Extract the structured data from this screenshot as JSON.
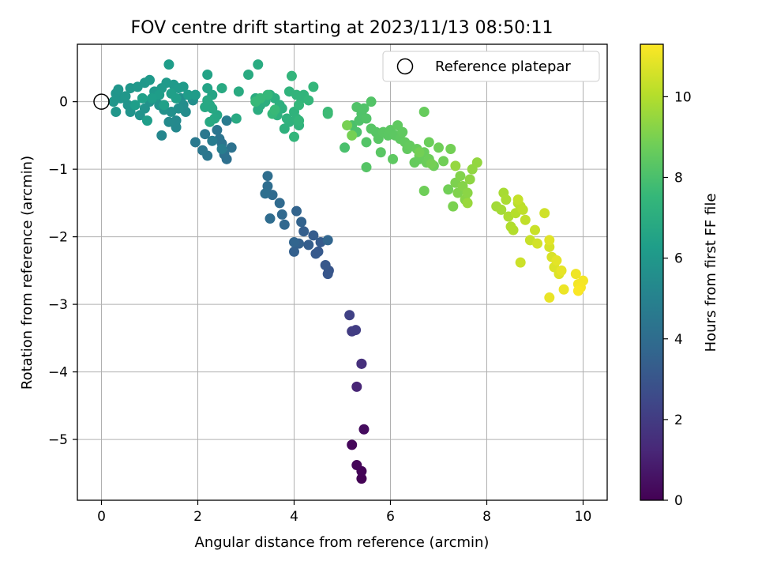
{
  "chart_data": {
    "type": "scatter",
    "title": "FOV centre drift starting at 2023/11/13 08:50:11",
    "xlabel": "Angular distance from reference (arcmin)",
    "ylabel": "Rotation from reference (arcmin)",
    "xlim": [
      -0.5,
      10.5
    ],
    "ylim": [
      -5.9,
      0.85
    ],
    "xticks": [
      0,
      2,
      4,
      6,
      8,
      10
    ],
    "yticks": [
      0,
      -1,
      -2,
      -3,
      -4,
      -5
    ],
    "xtick_labels": [
      "0",
      "2",
      "4",
      "6",
      "8",
      "10"
    ],
    "ytick_labels": [
      "0",
      "−1",
      "−2",
      "−3",
      "−4",
      "−5"
    ],
    "grid": true,
    "legend": {
      "placement": "top-right",
      "label": "Reference platepar",
      "marker": "open-circle"
    },
    "reference_point": {
      "x": 0,
      "y": 0
    },
    "colorbar": {
      "label": "Hours from first FF file",
      "colormap": "viridis",
      "range": [
        0,
        11.3
      ],
      "ticks": [
        0,
        2,
        4,
        6,
        8,
        10
      ],
      "tick_labels": [
        "0",
        "2",
        "4",
        "6",
        "8",
        "10"
      ],
      "colors": [
        "#440154",
        "#482878",
        "#3e4989",
        "#31688e",
        "#26828e",
        "#1f9e89",
        "#35b779",
        "#6ece58",
        "#b5de2b",
        "#fde725"
      ]
    },
    "points": [
      [
        5.4,
        -5.58,
        0.05
      ],
      [
        5.4,
        -5.47,
        0.1
      ],
      [
        5.3,
        -5.38,
        0.15
      ],
      [
        5.2,
        -5.08,
        0.2
      ],
      [
        5.45,
        -4.85,
        0.35
      ],
      [
        5.3,
        -4.22,
        1.2
      ],
      [
        5.4,
        -3.88,
        1.5
      ],
      [
        5.4,
        -3.88,
        1.55
      ],
      [
        5.2,
        -3.4,
        2.0
      ],
      [
        5.28,
        -3.38,
        2.05
      ],
      [
        5.15,
        -3.16,
        2.2
      ],
      [
        4.72,
        -2.5,
        3.0
      ],
      [
        4.7,
        -2.55,
        3.05
      ],
      [
        4.65,
        -2.42,
        3.1
      ],
      [
        4.5,
        -2.22,
        3.15
      ],
      [
        4.45,
        -2.25,
        3.2
      ],
      [
        4.55,
        -2.08,
        3.25
      ],
      [
        4.4,
        -1.98,
        3.3
      ],
      [
        4.3,
        -2.12,
        3.35
      ],
      [
        4.2,
        -1.92,
        3.4
      ],
      [
        4.0,
        -2.22,
        3.45
      ],
      [
        4.1,
        -2.1,
        3.5
      ],
      [
        4.15,
        -1.78,
        3.55
      ],
      [
        4.05,
        -1.62,
        3.6
      ],
      [
        4.0,
        -2.08,
        3.65
      ],
      [
        4.7,
        -2.05,
        3.7
      ],
      [
        3.8,
        -1.82,
        3.75
      ],
      [
        3.75,
        -1.67,
        3.8
      ],
      [
        3.7,
        -1.5,
        3.85
      ],
      [
        3.55,
        -1.38,
        3.9
      ],
      [
        3.5,
        -1.73,
        3.95
      ],
      [
        3.45,
        -1.25,
        4.0
      ],
      [
        3.45,
        -1.1,
        4.05
      ],
      [
        3.4,
        -1.36,
        4.1
      ],
      [
        2.6,
        -0.85,
        4.15
      ],
      [
        2.55,
        -0.78,
        4.2
      ],
      [
        2.7,
        -0.68,
        4.25
      ],
      [
        2.5,
        -0.62,
        4.3
      ],
      [
        2.45,
        -0.55,
        4.35
      ],
      [
        2.4,
        -0.42,
        4.4
      ],
      [
        2.2,
        -0.8,
        4.45
      ],
      [
        2.1,
        -0.72,
        4.5
      ],
      [
        2.15,
        -0.48,
        4.55
      ],
      [
        1.95,
        -0.6,
        4.6
      ],
      [
        2.6,
        -0.28,
        4.7
      ],
      [
        2.3,
        -0.58,
        4.75
      ],
      [
        2.5,
        -0.7,
        4.8
      ],
      [
        1.25,
        -0.5,
        5.2
      ],
      [
        1.55,
        -0.38,
        5.3
      ],
      [
        1.55,
        -0.28,
        5.35
      ],
      [
        1.4,
        -0.3,
        5.4
      ],
      [
        1.75,
        -0.15,
        5.45
      ],
      [
        1.7,
        -0.05,
        5.5
      ],
      [
        1.65,
        0.05,
        5.55
      ],
      [
        1.9,
        0.02,
        5.6
      ],
      [
        1.6,
        -0.1,
        5.62
      ],
      [
        1.45,
        -0.15,
        5.65
      ],
      [
        1.3,
        -0.12,
        5.7
      ],
      [
        1.2,
        -0.05,
        5.72
      ],
      [
        1.1,
        0.05,
        5.74
      ],
      [
        1.0,
        0.0,
        5.76
      ],
      [
        0.9,
        -0.1,
        5.78
      ],
      [
        0.8,
        -0.2,
        5.8
      ],
      [
        0.6,
        -0.15,
        5.82
      ],
      [
        0.55,
        -0.05,
        5.84
      ],
      [
        0.4,
        0.05,
        5.86
      ],
      [
        0.3,
        0.12,
        5.88
      ],
      [
        0.35,
        0.18,
        5.9
      ],
      [
        0.25,
        0.0,
        5.92
      ],
      [
        0.3,
        -0.15,
        5.94
      ],
      [
        0.5,
        0.08,
        5.96
      ],
      [
        0.6,
        0.2,
        5.98
      ],
      [
        0.75,
        0.22,
        6.0
      ],
      [
        0.9,
        0.28,
        6.02
      ],
      [
        1.0,
        0.32,
        6.04
      ],
      [
        1.1,
        0.15,
        6.06
      ],
      [
        1.25,
        0.2,
        6.08
      ],
      [
        1.35,
        0.28,
        6.1
      ],
      [
        1.5,
        0.25,
        6.12
      ],
      [
        1.6,
        0.2,
        6.14
      ],
      [
        1.7,
        0.22,
        6.16
      ],
      [
        1.8,
        0.1,
        6.18
      ],
      [
        1.95,
        0.1,
        6.2
      ],
      [
        1.4,
        0.55,
        6.22
      ],
      [
        1.2,
        0.1,
        6.24
      ],
      [
        0.95,
        -0.28,
        6.26
      ],
      [
        0.7,
        -0.05,
        6.28
      ],
      [
        1.05,
        0.05,
        6.3
      ],
      [
        1.45,
        0.12,
        6.32
      ],
      [
        1.55,
        0.05,
        6.34
      ],
      [
        0.85,
        0.05,
        6.36
      ],
      [
        1.3,
        -0.05,
        6.38
      ],
      [
        2.2,
        0.4,
        6.5
      ],
      [
        2.2,
        0.2,
        6.55
      ],
      [
        2.3,
        0.1,
        6.6
      ],
      [
        2.25,
        -0.05,
        6.65
      ],
      [
        2.4,
        -0.2,
        6.7
      ],
      [
        2.35,
        -0.25,
        6.72
      ],
      [
        2.3,
        -0.1,
        6.74
      ],
      [
        2.15,
        -0.08,
        6.76
      ],
      [
        2.2,
        0.02,
        6.78
      ],
      [
        2.25,
        -0.3,
        6.8
      ],
      [
        2.5,
        0.2,
        6.82
      ],
      [
        2.8,
        -0.25,
        6.85
      ],
      [
        2.85,
        0.15,
        6.88
      ],
      [
        3.05,
        0.4,
        6.9
      ],
      [
        3.25,
        0.55,
        6.92
      ],
      [
        3.2,
        0.05,
        6.95
      ],
      [
        3.3,
        -0.05,
        6.98
      ],
      [
        3.25,
        -0.12,
        7.0
      ],
      [
        3.4,
        0.0,
        7.05
      ],
      [
        3.5,
        0.1,
        7.08
      ],
      [
        3.6,
        0.05,
        7.1
      ],
      [
        3.7,
        -0.05,
        7.12
      ],
      [
        3.75,
        -0.1,
        7.15
      ],
      [
        3.65,
        -0.2,
        7.18
      ],
      [
        3.8,
        -0.4,
        7.2
      ],
      [
        3.9,
        -0.3,
        7.22
      ],
      [
        3.85,
        -0.25,
        7.24
      ],
      [
        4.0,
        -0.15,
        7.26
      ],
      [
        4.05,
        -0.25,
        7.28
      ],
      [
        4.1,
        -0.35,
        7.3
      ],
      [
        3.9,
        0.15,
        7.32
      ],
      [
        4.05,
        0.1,
        7.34
      ],
      [
        4.15,
        0.05,
        7.36
      ],
      [
        4.2,
        0.1,
        7.38
      ],
      [
        3.95,
        0.38,
        7.4
      ],
      [
        4.0,
        -0.52,
        7.42
      ],
      [
        4.1,
        -0.28,
        7.44
      ],
      [
        4.3,
        0.02,
        7.46
      ],
      [
        4.4,
        0.22,
        7.48
      ],
      [
        4.1,
        -0.05,
        7.5
      ],
      [
        3.55,
        -0.18,
        7.52
      ],
      [
        3.45,
        0.1,
        7.54
      ],
      [
        3.3,
        0.05,
        7.56
      ],
      [
        3.2,
        0.0,
        7.58
      ],
      [
        3.6,
        -0.12,
        7.6
      ],
      [
        4.7,
        -0.15,
        7.65
      ],
      [
        4.7,
        -0.18,
        7.7
      ],
      [
        5.05,
        -0.68,
        8.0
      ],
      [
        5.2,
        -0.35,
        8.05
      ],
      [
        5.3,
        -0.45,
        8.08
      ],
      [
        5.35,
        -0.28,
        8.1
      ],
      [
        5.4,
        -0.18,
        8.12
      ],
      [
        5.3,
        -0.08,
        8.14
      ],
      [
        5.45,
        -0.1,
        8.16
      ],
      [
        5.5,
        -0.25,
        8.18
      ],
      [
        5.6,
        0.0,
        8.2
      ],
      [
        5.5,
        -0.6,
        8.22
      ],
      [
        5.5,
        -0.97,
        8.25
      ],
      [
        5.6,
        -0.4,
        8.28
      ],
      [
        5.7,
        -0.45,
        8.3
      ],
      [
        5.75,
        -0.55,
        8.32
      ],
      [
        5.8,
        -0.75,
        8.34
      ],
      [
        5.85,
        -0.45,
        8.36
      ],
      [
        5.95,
        -0.5,
        8.38
      ],
      [
        6.0,
        -0.42,
        8.4
      ],
      [
        6.1,
        -0.5,
        8.42
      ],
      [
        6.05,
        -0.85,
        8.44
      ],
      [
        6.2,
        -0.55,
        8.46
      ],
      [
        6.15,
        -0.35,
        8.48
      ],
      [
        6.25,
        -0.45,
        8.5
      ],
      [
        6.3,
        -0.6,
        8.52
      ],
      [
        6.35,
        -0.7,
        8.54
      ],
      [
        6.4,
        -0.65,
        8.56
      ],
      [
        6.5,
        -0.9,
        8.58
      ],
      [
        6.6,
        -0.85,
        8.6
      ],
      [
        6.7,
        -0.15,
        8.62
      ],
      [
        6.55,
        -0.7,
        8.64
      ],
      [
        6.6,
        -0.8,
        8.66
      ],
      [
        6.7,
        -0.75,
        8.68
      ],
      [
        6.75,
        -0.9,
        8.7
      ],
      [
        6.8,
        -0.6,
        8.72
      ],
      [
        6.8,
        -0.85,
        8.74
      ],
      [
        6.9,
        -0.95,
        8.76
      ],
      [
        6.7,
        -1.32,
        8.78
      ],
      [
        7.0,
        -0.68,
        8.8
      ],
      [
        7.1,
        -0.88,
        8.82
      ],
      [
        7.2,
        -1.3,
        8.84
      ],
      [
        7.25,
        -0.7,
        8.86
      ],
      [
        6.6,
        -0.75,
        8.88
      ],
      [
        6.85,
        -0.92,
        8.9
      ],
      [
        5.2,
        -0.5,
        8.92
      ],
      [
        5.1,
        -0.35,
        8.94
      ],
      [
        7.3,
        -1.55,
        9.0
      ],
      [
        7.35,
        -1.2,
        9.05
      ],
      [
        7.4,
        -1.35,
        9.1
      ],
      [
        7.45,
        -1.1,
        9.15
      ],
      [
        7.5,
        -1.25,
        9.2
      ],
      [
        7.55,
        -1.45,
        9.25
      ],
      [
        7.6,
        -1.35,
        9.3
      ],
      [
        7.65,
        -1.15,
        9.35
      ],
      [
        7.7,
        -1.0,
        9.4
      ],
      [
        7.8,
        -0.9,
        9.45
      ],
      [
        7.35,
        -0.95,
        9.5
      ],
      [
        7.6,
        -1.5,
        9.55
      ],
      [
        8.2,
        -1.55,
        9.7
      ],
      [
        8.3,
        -1.6,
        9.75
      ],
      [
        8.35,
        -1.35,
        9.8
      ],
      [
        8.4,
        -1.45,
        9.85
      ],
      [
        8.45,
        -1.7,
        9.9
      ],
      [
        8.5,
        -1.85,
        9.95
      ],
      [
        8.55,
        -1.9,
        10.0
      ],
      [
        8.6,
        -1.65,
        10.05
      ],
      [
        8.65,
        -1.5,
        10.1
      ],
      [
        8.7,
        -1.55,
        10.15
      ],
      [
        8.75,
        -1.6,
        10.2
      ],
      [
        8.8,
        -1.75,
        10.25
      ],
      [
        8.65,
        -1.45,
        10.3
      ],
      [
        8.9,
        -2.05,
        10.35
      ],
      [
        9.0,
        -1.9,
        10.4
      ],
      [
        8.7,
        -2.38,
        10.45
      ],
      [
        9.2,
        -1.65,
        10.5
      ],
      [
        9.05,
        -2.1,
        10.55
      ],
      [
        9.3,
        -2.15,
        10.6
      ],
      [
        9.35,
        -2.3,
        10.65
      ],
      [
        9.4,
        -2.45,
        10.7
      ],
      [
        9.5,
        -2.55,
        10.75
      ],
      [
        9.3,
        -2.05,
        10.8
      ],
      [
        9.45,
        -2.35,
        10.85
      ],
      [
        9.55,
        -2.5,
        10.9
      ],
      [
        9.3,
        -2.9,
        10.95
      ],
      [
        9.6,
        -2.78,
        11.0
      ],
      [
        9.85,
        -2.55,
        11.05
      ],
      [
        9.9,
        -2.7,
        11.1
      ],
      [
        10.0,
        -2.65,
        11.15
      ],
      [
        9.95,
        -2.75,
        11.2
      ],
      [
        9.9,
        -2.8,
        11.25
      ]
    ]
  }
}
